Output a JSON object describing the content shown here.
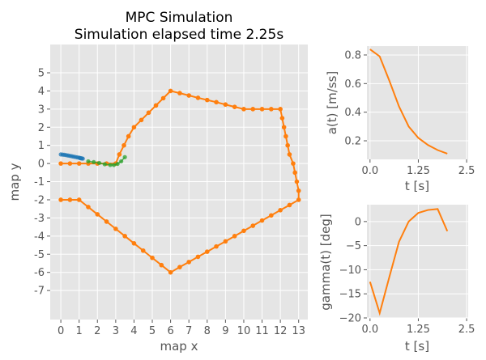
{
  "chart_data": [
    {
      "type": "line",
      "title": "MPC Simulation",
      "subtitle": "Simulation elapsed time 2.25s",
      "xlabel": "map x",
      "ylabel": "map y",
      "xlim": [
        -0.58,
        13.5
      ],
      "ylim": [
        -8.6,
        6.56
      ],
      "xticks": [
        0,
        1,
        2,
        3,
        4,
        5,
        6,
        7,
        8,
        9,
        10,
        11,
        12,
        13
      ],
      "yticks": [
        -7,
        -6,
        -5,
        -4,
        -3,
        -2,
        -1,
        0,
        1,
        2,
        3,
        4,
        5
      ],
      "grid": true,
      "series": [
        {
          "color": "#ff7f0e",
          "marker": "o",
          "x": [
            0,
            0.5,
            1,
            1.5,
            2,
            2.5,
            3,
            3.2,
            3.45,
            3.7,
            4,
            4.4,
            4.8,
            5.2,
            5.6,
            6,
            6.5,
            7,
            7.5,
            8,
            8.5,
            9,
            9.5,
            10,
            10.5,
            11,
            11.5,
            12,
            12.1,
            12.2,
            12.3,
            12.4,
            12.5,
            12.7,
            12.8,
            12.9,
            13,
            13,
            12.5,
            12,
            11.5,
            11,
            10.5,
            10,
            9.5,
            9,
            8.5,
            8,
            7.5,
            7,
            6.5,
            6,
            5.5,
            5,
            4.5,
            4,
            3.5,
            3,
            2.5,
            2,
            1.5,
            1,
            0.5,
            0
          ],
          "y": [
            0,
            0,
            0,
            0,
            0,
            0,
            0,
            0.5,
            1,
            1.5,
            2,
            2.4,
            2.8,
            3.2,
            3.6,
            4,
            3.88,
            3.75,
            3.62,
            3.5,
            3.38,
            3.25,
            3.12,
            3,
            3,
            3,
            3,
            3,
            2.5,
            2,
            1.5,
            1,
            0.5,
            0,
            -0.5,
            -1,
            -1.5,
            -2,
            -2.29,
            -2.57,
            -2.86,
            -3.14,
            -3.43,
            -3.71,
            -4,
            -4.29,
            -4.57,
            -4.86,
            -5.14,
            -5.43,
            -5.71,
            -6,
            -5.6,
            -5.2,
            -4.8,
            -4.4,
            -4,
            -3.6,
            -3.2,
            -2.8,
            -2.4,
            -2,
            -2,
            -2
          ]
        },
        {
          "color": "#1f77b4",
          "marker": "o",
          "x": [
            0,
            0.1,
            0.2,
            0.3,
            0.4,
            0.5,
            0.6,
            0.7,
            0.8,
            0.9,
            1,
            1.05,
            1.1,
            1.15,
            1.2
          ],
          "y": [
            0.5,
            0.49,
            0.48,
            0.46,
            0.44,
            0.42,
            0.4,
            0.38,
            0.36,
            0.34,
            0.32,
            0.3,
            0.29,
            0.28,
            0.27
          ]
        },
        {
          "color": "#2ca02c",
          "marker": "o",
          "x": [
            1.5,
            1.8,
            2.1,
            2.4,
            2.7,
            2.9,
            3.1,
            3.3,
            3.5
          ],
          "y": [
            0.12,
            0.08,
            0.03,
            -0.04,
            -0.08,
            -0.08,
            -0.02,
            0.12,
            0.35
          ]
        }
      ]
    },
    {
      "type": "line",
      "xlabel": "t [s]",
      "ylabel": "a(t) [m/ss]",
      "xlim": [
        -0.08,
        2.54
      ],
      "ylim": [
        0.07,
        0.862
      ],
      "xticks": [
        "0.0",
        "1.25",
        "2.5"
      ],
      "yticks": [
        "0.2",
        "0.4",
        "0.6",
        "0.8"
      ],
      "grid": true,
      "series": [
        {
          "color": "#ff7f0e",
          "x": [
            0,
            0.25,
            0.5,
            0.75,
            1,
            1.25,
            1.5,
            1.75,
            2
          ],
          "y": [
            0.84,
            0.79,
            0.62,
            0.44,
            0.3,
            0.22,
            0.17,
            0.135,
            0.11
          ]
        }
      ]
    },
    {
      "type": "line",
      "xlabel": "t [s]",
      "ylabel": "gamma(t) [deg]",
      "xlim": [
        -0.08,
        2.54
      ],
      "ylim": [
        -20,
        3.5
      ],
      "xticks": [
        "0.0",
        "1.25",
        "2.5"
      ],
      "yticks": [
        "−20",
        "−15",
        "−10",
        "−5",
        "0"
      ],
      "grid": true,
      "series": [
        {
          "color": "#ff7f0e",
          "x": [
            0,
            0.25,
            0.5,
            0.75,
            1,
            1.25,
            1.5,
            1.75,
            2
          ],
          "y": [
            -12.5,
            -19,
            -11.5,
            -4.2,
            0,
            1.8,
            2.4,
            2.6,
            -2
          ]
        }
      ]
    }
  ]
}
